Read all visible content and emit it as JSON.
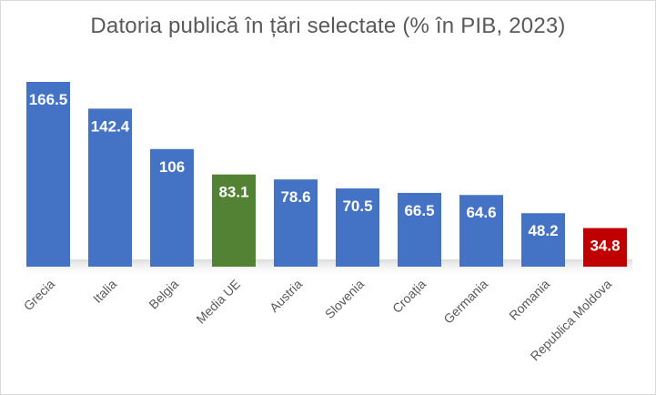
{
  "chart_data": {
    "type": "bar",
    "title": "Datoria publică în țări selectate (% în PIB, 2023)",
    "categories": [
      "Grecia",
      "Italia",
      "Belgia",
      "Media UE",
      "Austria",
      "Slovenia",
      "Croația",
      "Germania",
      "Romania",
      "Republica Moldova"
    ],
    "values": [
      166.5,
      142.4,
      106,
      83.1,
      78.6,
      70.5,
      66.5,
      64.6,
      48.2,
      34.8
    ],
    "bar_colors": [
      "#4472c4",
      "#4472c4",
      "#4472c4",
      "#548235",
      "#4472c4",
      "#4472c4",
      "#4472c4",
      "#4472c4",
      "#4472c4",
      "#c00000"
    ],
    "xlabel": "",
    "ylabel": "",
    "ylim": [
      0,
      166.5
    ],
    "grid": false,
    "legend": "none",
    "data_labels": true
  }
}
